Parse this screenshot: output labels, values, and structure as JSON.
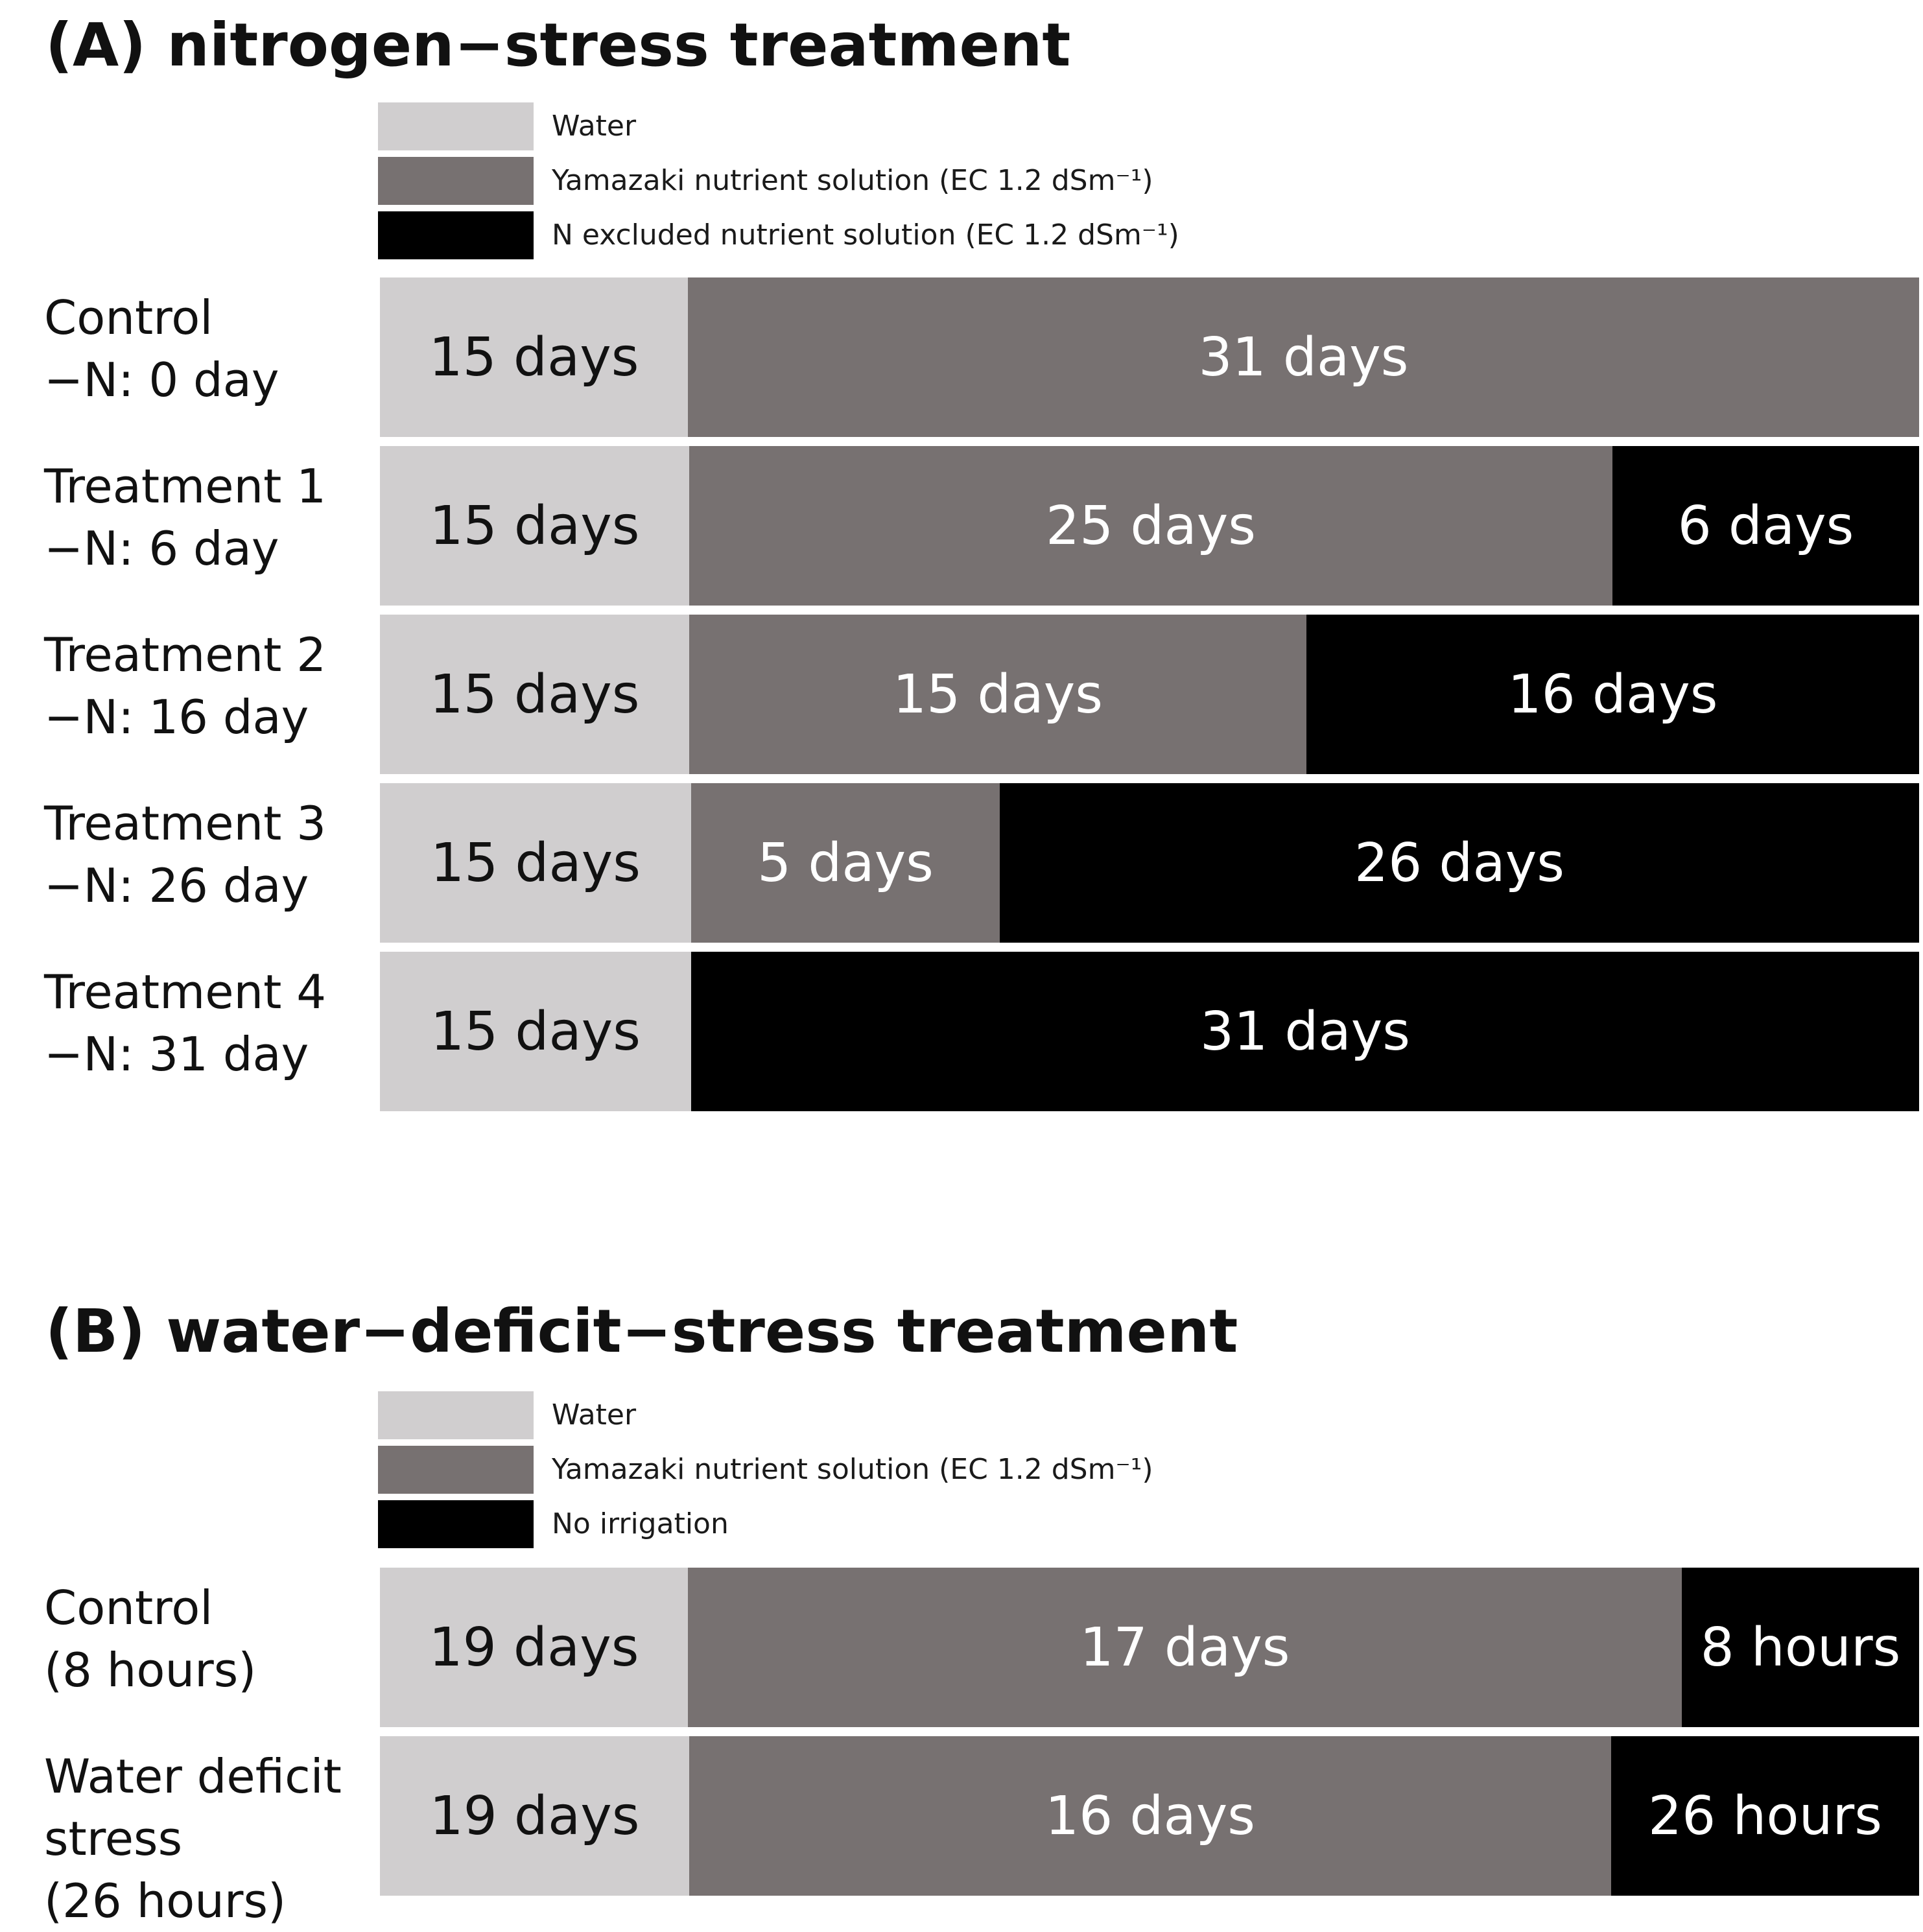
{
  "colors": {
    "water": "#d0cecf",
    "yamazaki": "#777171",
    "stress": "#000000"
  },
  "sections": [
    {
      "title": "(A) nitrogen−stress treatment",
      "legend": [
        {
          "label": "Water",
          "color_key": "water"
        },
        {
          "label": "Yamazaki nutrient solution (EC 1.2 dSm⁻¹)",
          "color_key": "yamazaki"
        },
        {
          "label": "N excluded nutrient solution (EC 1.2 dSm⁻¹)",
          "color_key": "stress"
        }
      ],
      "rows": [
        {
          "label": "Control\n−N: 0 day",
          "segments": [
            {
              "text": "15 days",
              "color_key": "water",
              "value": 15
            },
            {
              "text": "31 days",
              "color_key": "yamazaki",
              "value": 31
            }
          ]
        },
        {
          "label": "Treatment 1\n−N: 6 day",
          "segments": [
            {
              "text": "15 days",
              "color_key": "water",
              "value": 15
            },
            {
              "text": "25 days",
              "color_key": "yamazaki",
              "value": 25
            },
            {
              "text": "6 days",
              "color_key": "stress",
              "value": 6
            }
          ]
        },
        {
          "label": "Treatment 2\n−N: 16 day",
          "segments": [
            {
              "text": "15 days",
              "color_key": "water",
              "value": 15
            },
            {
              "text": "15 days",
              "color_key": "yamazaki",
              "value": 15
            },
            {
              "text": "16 days",
              "color_key": "stress",
              "value": 16
            }
          ]
        },
        {
          "label": "Treatment 3\n−N: 26 day",
          "segments": [
            {
              "text": "15 days",
              "color_key": "water",
              "value": 15
            },
            {
              "text": "5 days",
              "color_key": "yamazaki",
              "value": 5
            },
            {
              "text": "26 days",
              "color_key": "stress",
              "value": 26
            }
          ]
        },
        {
          "label": "Treatment 4\n−N: 31 day",
          "segments": [
            {
              "text": "15 days",
              "color_key": "water",
              "value": 15
            },
            {
              "text": "31 days",
              "color_key": "stress",
              "value": 31
            }
          ]
        }
      ]
    },
    {
      "title": "(B) water−deficit−stress treatment",
      "legend": [
        {
          "label": "Water",
          "color_key": "water"
        },
        {
          "label": "Yamazaki nutrient solution (EC 1.2 dSm⁻¹)",
          "color_key": "yamazaki"
        },
        {
          "label": "No irrigation",
          "color_key": "stress"
        }
      ],
      "rows": [
        {
          "label": "Control\n(8 hours)",
          "segments": [
            {
              "text": "19 days",
              "color_key": "water",
              "value": 19
            },
            {
              "text": "17 days",
              "color_key": "yamazaki",
              "value": 17
            },
            {
              "text": "8 hours",
              "color_key": "stress",
              "value": 8
            }
          ]
        },
        {
          "label": "Water deficit\nstress\n(26 hours)",
          "segments": [
            {
              "text": "19 days",
              "color_key": "water",
              "value": 19
            },
            {
              "text": "16 days",
              "color_key": "yamazaki",
              "value": 16
            },
            {
              "text": "26 hours",
              "color_key": "stress",
              "value": 26
            }
          ]
        }
      ]
    }
  ]
}
